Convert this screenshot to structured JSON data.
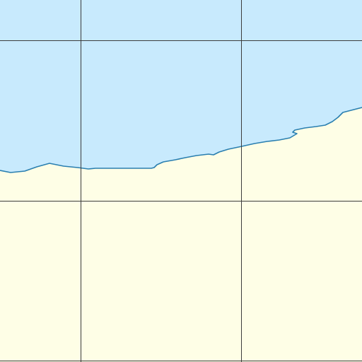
{
  "map": {
    "type": "coastline-tile",
    "colors": {
      "water": "#c8eafd",
      "land": "#fefee6",
      "coastline": "#2a7fb0",
      "grid": "#3c3c3c"
    },
    "features": {
      "water_body": "sea",
      "land_body": "land",
      "coastline": "shoreline",
      "graticule": "grid-lines"
    }
  }
}
